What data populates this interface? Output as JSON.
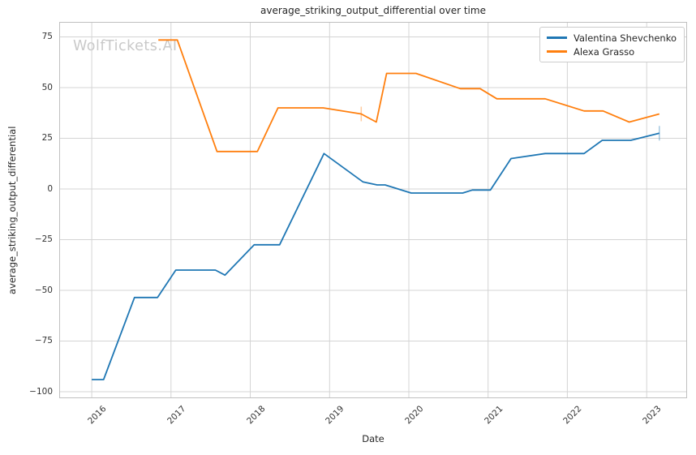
{
  "watermark": "WolfTickets.AI",
  "colors": {
    "background": "#ffffff",
    "grid": "#d4d4d4",
    "spine": "#c0c0c0",
    "title_text": "#262626",
    "tick_text": "#333333",
    "watermark_text": "#c9c9c9",
    "shevchenko_blue": "#1f77b4",
    "grasso_orange": "#ff7f0e"
  },
  "chart_data": {
    "type": "line",
    "title": "average_striking_output_differential over time",
    "xlabel": "Date",
    "ylabel": "average_striking_output_differential",
    "x_tick_labels": [
      "2016",
      "2017",
      "2018",
      "2019",
      "2020",
      "2021",
      "2022",
      "2023"
    ],
    "x_tick_values": [
      2016,
      2017,
      2018,
      2019,
      2020,
      2021,
      2022,
      2023
    ],
    "y_tick_values": [
      75,
      50,
      25,
      0,
      -25,
      -50,
      -75,
      -100
    ],
    "xlim": [
      2015.59,
      2023.51
    ],
    "ylim": [
      -103.2,
      82.4
    ],
    "grid": true,
    "legend": {
      "position": "upper right",
      "entries": [
        "Valentina Shevchenko",
        "Alexa Grasso"
      ]
    },
    "series": [
      {
        "name": "Valentina Shevchenko",
        "color": "#1f77b4",
        "points": [
          [
            2016.0,
            -94
          ],
          [
            2016.15,
            -94
          ],
          [
            2016.54,
            -53.5
          ],
          [
            2016.83,
            -53.5
          ],
          [
            2017.06,
            -40
          ],
          [
            2017.56,
            -40
          ],
          [
            2017.68,
            -42.5
          ],
          [
            2018.05,
            -27.5
          ],
          [
            2018.37,
            -27.5
          ],
          [
            2018.93,
            17.5
          ],
          [
            2019.42,
            3.5
          ],
          [
            2019.6,
            2
          ],
          [
            2019.7,
            2
          ],
          [
            2020.03,
            -2
          ],
          [
            2020.68,
            -2
          ],
          [
            2020.8,
            -0.5
          ],
          [
            2021.03,
            -0.5
          ],
          [
            2021.29,
            15
          ],
          [
            2021.72,
            17.5
          ],
          [
            2022.21,
            17.5
          ],
          [
            2022.44,
            24
          ],
          [
            2022.8,
            24
          ],
          [
            2023.16,
            27.5
          ]
        ]
      },
      {
        "name": "Alexa Grasso",
        "color": "#ff7f0e",
        "points": [
          [
            2016.84,
            73.5
          ],
          [
            2017.08,
            73.5
          ],
          [
            2017.58,
            18.5
          ],
          [
            2018.09,
            18.5
          ],
          [
            2018.35,
            40
          ],
          [
            2018.92,
            40
          ],
          [
            2019.4,
            37
          ],
          [
            2019.59,
            33
          ],
          [
            2019.72,
            57
          ],
          [
            2020.09,
            57
          ],
          [
            2020.65,
            49.5
          ],
          [
            2020.9,
            49.5
          ],
          [
            2021.11,
            44.5
          ],
          [
            2021.72,
            44.5
          ],
          [
            2022.21,
            38.5
          ],
          [
            2022.45,
            38.5
          ],
          [
            2022.78,
            33
          ],
          [
            2023.16,
            37
          ]
        ]
      }
    ],
    "tick_markers": [
      {
        "series": "Valentina Shevchenko",
        "x": 2023.16,
        "y": 27.5
      },
      {
        "series": "Alexa Grasso",
        "x": 2019.4,
        "y": 37
      }
    ]
  }
}
